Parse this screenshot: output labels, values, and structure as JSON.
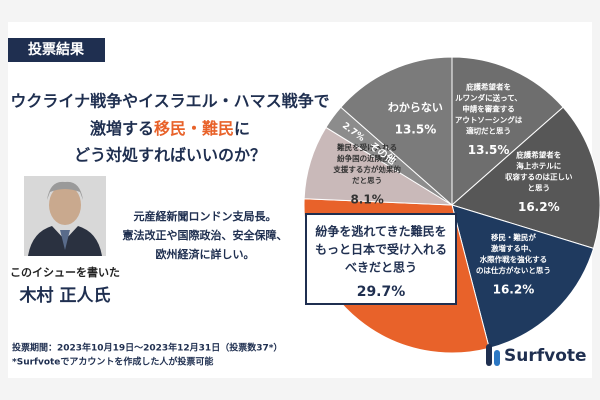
{
  "header": "投票結果",
  "question": [
    "ウクライナ戦争やイスラエル・ハマス戦争で",
    [
      "激増する",
      "移民・難民",
      "に"
    ],
    "どう対処すればいいのか？"
  ],
  "author": {
    "caption": "このイシューを書いた",
    "name": "木村 正人氏"
  },
  "description": [
    "元産経新聞ロンドン支局長。",
    "憲法改正や国際政治、安全保障、",
    "欧州経済に詳しい。"
  ],
  "footer": [
    "投票期間：2023年10月19日～2023年12月31日（投票数37*）",
    "*Surfvoteでアカウントを作成した人が投票可能"
  ],
  "logo": "Surfvote",
  "chart_data": {
    "type": "pie",
    "categories": [
      [
        "庇護希望者を",
        "ルワンダに送って、",
        "申請を審査する",
        "アウトソーシングは",
        "適切だと思う"
      ],
      [
        "庇護希望者を",
        "海上ホテルに",
        "収容するのは正しい",
        "と思う"
      ],
      [
        "移民・難民が",
        "激増する中、",
        "水際作戦を強化する",
        "のは仕方がないと思う"
      ],
      [
        "紛争を逃れてきた難民を",
        "もっと日本で受け入れる",
        "べきだと思う"
      ],
      [
        "難民を受け入れる",
        "紛争国の近隣国を",
        "支援する方が効果的",
        "だと思う"
      ],
      [
        "その他"
      ],
      [
        "わからない"
      ]
    ],
    "values": [
      13.5,
      16.2,
      16.2,
      29.7,
      8.1,
      2.7,
      13.5
    ],
    "value_labels": [
      "13.5%",
      "16.2%",
      "16.2%",
      "29.7%",
      "8.1%",
      "2.7%",
      "13.5%"
    ],
    "colors": [
      "#6e6e6e",
      "#575757",
      "#1f3a5f",
      "#e8622a",
      "#c9b9b9",
      "#8c8c8c",
      "#7b7b7b"
    ]
  }
}
